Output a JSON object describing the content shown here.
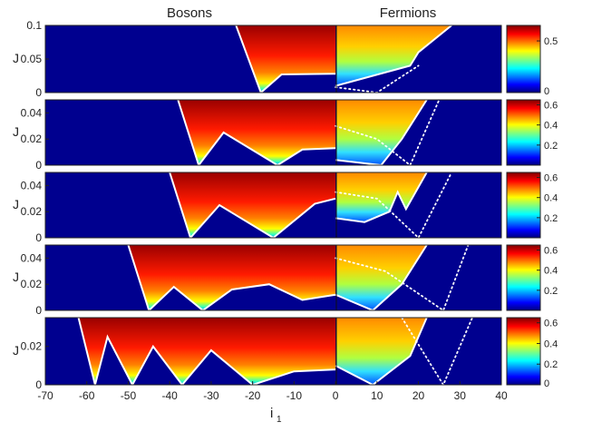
{
  "chart_data": {
    "type": "heatmap",
    "column_titles": [
      "Bosons",
      "Fermions"
    ],
    "xlabel": "i",
    "xlabel_sub": "1",
    "ylabel": "J",
    "x_ticks": [
      "-70",
      "-60",
      "-50",
      "-40",
      "-30",
      "-20",
      "-10",
      "0",
      "10",
      "20",
      "30",
      "40"
    ],
    "xlim": [
      -70,
      40
    ],
    "colormap": "jet",
    "grid": false,
    "panels": [
      {
        "ylim": [
          0,
          0.1
        ],
        "y_ticks": [
          "0",
          "0.05",
          "0.1"
        ],
        "colorbar_ticks": [
          "0",
          "0.5"
        ],
        "colorbar_range": [
          0,
          0.65
        ],
        "boson_boundary": [
          [
            -24,
            0.1
          ],
          [
            -18,
            0.0
          ],
          [
            -13,
            0.027
          ],
          [
            0,
            0.028
          ]
        ],
        "fermion_boundary": [
          [
            0,
            0.01
          ],
          [
            18,
            0.04
          ],
          [
            20,
            0.06
          ],
          [
            28,
            0.1
          ]
        ],
        "fermion_dotted": [
          [
            0,
            0.008
          ],
          [
            10,
            0.0
          ],
          [
            20,
            0.04
          ]
        ]
      },
      {
        "ylim": [
          0,
          0.05
        ],
        "y_ticks": [
          "0",
          "0.02",
          "0.04"
        ],
        "colorbar_ticks": [
          "0.2",
          "0.4",
          "0.6"
        ],
        "colorbar_range": [
          0,
          0.65
        ],
        "boson_boundary": [
          [
            -38,
            0.05
          ],
          [
            -33,
            0.0
          ],
          [
            -27,
            0.025
          ],
          [
            -14,
            0.0
          ],
          [
            -8,
            0.012
          ],
          [
            0,
            0.013
          ]
        ],
        "fermion_boundary": [
          [
            0,
            0.004
          ],
          [
            11,
            0.0
          ],
          [
            16,
            0.02
          ],
          [
            22,
            0.05
          ]
        ],
        "fermion_dotted": [
          [
            0,
            0.03
          ],
          [
            10,
            0.02
          ],
          [
            18,
            0.0
          ],
          [
            25,
            0.05
          ]
        ]
      },
      {
        "ylim": [
          0,
          0.05
        ],
        "y_ticks": [
          "0",
          "0.02",
          "0.04"
        ],
        "colorbar_ticks": [
          "0.2",
          "0.4",
          "0.6"
        ],
        "colorbar_range": [
          0,
          0.65
        ],
        "boson_boundary": [
          [
            -40,
            0.05
          ],
          [
            -35,
            0.0
          ],
          [
            -28,
            0.025
          ],
          [
            -15,
            0.0
          ],
          [
            -5,
            0.026
          ],
          [
            0,
            0.03
          ]
        ],
        "fermion_boundary": [
          [
            0,
            0.015
          ],
          [
            7,
            0.012
          ],
          [
            13,
            0.02
          ],
          [
            15,
            0.035
          ],
          [
            17,
            0.022
          ],
          [
            22,
            0.05
          ]
        ],
        "fermion_dotted": [
          [
            0,
            0.035
          ],
          [
            10,
            0.03
          ],
          [
            20,
            0.0
          ],
          [
            28,
            0.05
          ]
        ]
      },
      {
        "ylim": [
          0,
          0.05
        ],
        "y_ticks": [
          "0",
          "0.02",
          "0.04"
        ],
        "colorbar_ticks": [
          "0.2",
          "0.4",
          "0.6"
        ],
        "colorbar_range": [
          0,
          0.65
        ],
        "boson_boundary": [
          [
            -50,
            0.05
          ],
          [
            -45,
            0.0
          ],
          [
            -39,
            0.018
          ],
          [
            -32,
            0.0
          ],
          [
            -25,
            0.016
          ],
          [
            -16,
            0.02
          ],
          [
            -8,
            0.008
          ],
          [
            0,
            0.012
          ]
        ],
        "fermion_boundary": [
          [
            0,
            0.012
          ],
          [
            9,
            0.0
          ],
          [
            16,
            0.02
          ],
          [
            22,
            0.05
          ]
        ],
        "fermion_dotted": [
          [
            0,
            0.04
          ],
          [
            12,
            0.03
          ],
          [
            26,
            0.0
          ],
          [
            32,
            0.05
          ]
        ]
      },
      {
        "ylim": [
          0,
          0.035
        ],
        "y_ticks": [
          "0",
          "0.02"
        ],
        "colorbar_ticks": [
          "0",
          "0.2",
          "0.4",
          "0.6"
        ],
        "colorbar_range": [
          0,
          0.65
        ],
        "boson_boundary": [
          [
            -62,
            0.035
          ],
          [
            -58,
            0.0
          ],
          [
            -55,
            0.025
          ],
          [
            -49,
            0.0
          ],
          [
            -44,
            0.02
          ],
          [
            -37,
            0.0
          ],
          [
            -30,
            0.018
          ],
          [
            -20,
            0.0
          ],
          [
            -10,
            0.007
          ],
          [
            0,
            0.008
          ]
        ],
        "fermion_boundary": [
          [
            0,
            0.01
          ],
          [
            9,
            0.0
          ],
          [
            18,
            0.015
          ],
          [
            22,
            0.035
          ]
        ],
        "fermion_dotted": [
          [
            16,
            0.035
          ],
          [
            26,
            0.0
          ],
          [
            33,
            0.035
          ]
        ]
      }
    ]
  }
}
